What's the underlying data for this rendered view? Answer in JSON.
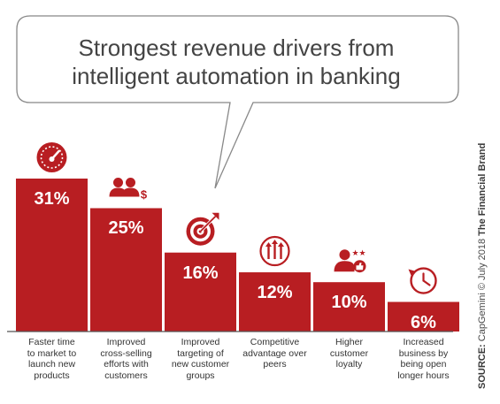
{
  "title_lines": [
    "Strongest revenue drivers from",
    "intelligent automation in banking"
  ],
  "source": {
    "label": "SOURCE:",
    "text": "CapGemini © July 2018",
    "brand": "The Financial Brand"
  },
  "colors": {
    "bar": "#b81e22",
    "icon": "#b81e22",
    "axis": "#555555",
    "bubble_stroke": "#888888"
  },
  "chart_data": {
    "type": "bar",
    "title": "Strongest revenue drivers from intelligent automation in banking",
    "categories": [
      "Faster time to market to launch new products",
      "Improved cross-selling efforts with customers",
      "Improved targeting of new customer groups",
      "Competitive advantage over peers",
      "Higher customer loyalty",
      "Increased business by being open longer hours"
    ],
    "category_lines": [
      [
        "Faster time",
        "to market to",
        "launch new",
        "products"
      ],
      [
        "Improved",
        "cross-selling",
        "efforts with",
        "customers"
      ],
      [
        "Improved",
        "targeting of",
        "new customer",
        "groups"
      ],
      [
        "Competitive",
        "advantage over",
        "peers"
      ],
      [
        "Higher",
        "customer",
        "loyalty"
      ],
      [
        "Increased",
        "business by",
        "being open",
        "longer hours"
      ]
    ],
    "values": [
      31,
      25,
      16,
      12,
      10,
      6
    ],
    "value_labels": [
      "31%",
      "25%",
      "16%",
      "12%",
      "10%",
      "6%"
    ],
    "icons": [
      "speedometer-icon",
      "users-dollar-icon",
      "target-icon",
      "growth-arrows-icon",
      "user-stars-thumbsup-icon",
      "clock-icon"
    ],
    "ylim": [
      0,
      31
    ],
    "grid": false,
    "legend": "none"
  }
}
